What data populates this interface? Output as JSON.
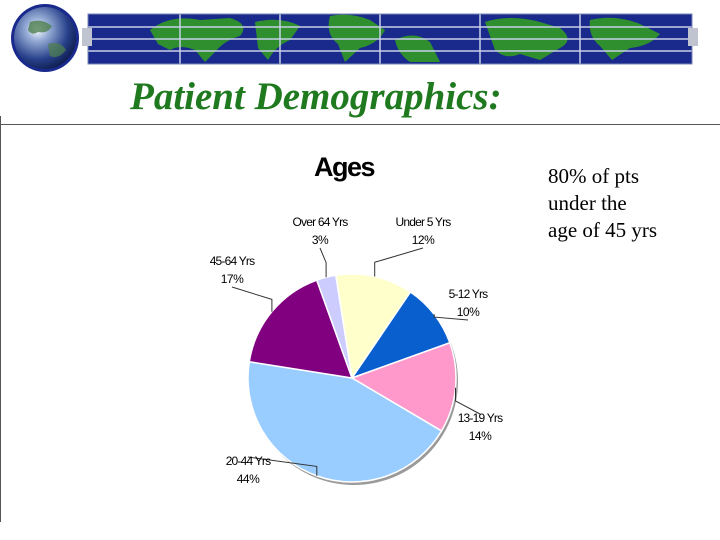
{
  "slide": {
    "title": "Patient Demographics:",
    "note_lines": [
      "80% of pts",
      "under the",
      "age of 45 yrs"
    ]
  },
  "colors": {
    "title": "#1f7a1f",
    "banner_bg": "#1a2a8c",
    "banner_land": "#2f8f2f",
    "banner_grid": "#c8d0e8"
  },
  "icons": {
    "logo": "globe-icon",
    "banner": "world-map-banner"
  },
  "chart_data": {
    "type": "pie",
    "title": "Ages",
    "start_angle_deg": -9,
    "direction": "clockwise",
    "slices": [
      {
        "label": "Under 5 Yrs",
        "pct_label": "12%",
        "value": 12,
        "color": "#ffffcc"
      },
      {
        "label": "5-12 Yrs",
        "pct_label": "10%",
        "value": 10,
        "color": "#0a5fcf"
      },
      {
        "label": "13-19 Yrs",
        "pct_label": "14%",
        "value": 14,
        "color": "#ff99cc"
      },
      {
        "label": "20-44 Yrs",
        "pct_label": "44%",
        "value": 44,
        "color": "#99ccff"
      },
      {
        "label": "45-64 Yrs",
        "pct_label": "17%",
        "value": 17,
        "color": "#800080"
      },
      {
        "label": "Over 64 Yrs",
        "pct_label": "3%",
        "value": 3,
        "color": "#ccccff"
      }
    ]
  }
}
